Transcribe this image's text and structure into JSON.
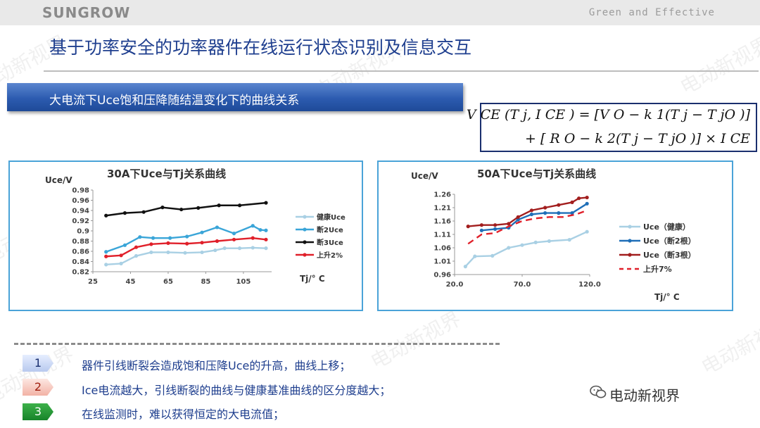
{
  "header": {
    "logo": "SUNGROW",
    "tagline": "Green and Effective"
  },
  "title": "基于功率安全的功率器件在线运行状态识别及信息交互",
  "subtitle": "大电流下Uce饱和压降随结温变化下的曲线关系",
  "formula": {
    "line1": "V CE (T j, I CE ) = [V O − k 1(T j − T jO )]",
    "line2": "+ [ R O − k 2(T j − T jO )] × I CE"
  },
  "watermark": "电动新视界",
  "colors": {
    "title_blue": "#1f3f8f",
    "subtitle_bar": "#2c5bb0",
    "chart_border": "#4aa3d8",
    "healthy": "#a9d0e4",
    "broken2": "#3aa5d8",
    "broken3": "#111111",
    "rise": "#e0202a",
    "c2_healthy": "#a9d0e4",
    "c2_broken2": "#1f6fb8",
    "c2_broken3": "#a21e1e",
    "c2_rise": "#e0202a"
  },
  "chart_data": [
    {
      "type": "line",
      "title": "30A下Uce与Tj关系曲线",
      "ylabel": "Uce/V",
      "xlabel": "Tj/° C",
      "xlim": [
        25,
        120
      ],
      "ylim": [
        0.82,
        0.98
      ],
      "x_ticks": [
        "25",
        "45",
        "65",
        "85",
        "105"
      ],
      "x_tick_values": [
        25,
        45,
        65,
        85,
        105
      ],
      "y_ticks": [
        "0.82",
        "0.84",
        "0.86",
        "0.88",
        "0.9",
        "0.92",
        "0.94",
        "0.96",
        "0.98"
      ],
      "y_tick_values": [
        0.82,
        0.84,
        0.86,
        0.88,
        0.9,
        0.92,
        0.94,
        0.96,
        0.98
      ],
      "legend_position": "right",
      "series": [
        {
          "name": "健康Uce",
          "color": "#a9d0e4",
          "x": [
            32,
            40,
            48,
            56,
            65,
            74,
            83,
            90,
            95,
            103,
            110,
            117
          ],
          "y": [
            0.834,
            0.836,
            0.851,
            0.858,
            0.858,
            0.857,
            0.858,
            0.862,
            0.866,
            0.866,
            0.867,
            0.866
          ]
        },
        {
          "name": "断2Uce",
          "color": "#3aa5d8",
          "x": [
            32,
            42,
            50,
            57,
            66,
            75,
            83,
            91,
            100,
            110,
            114,
            117
          ],
          "y": [
            0.859,
            0.872,
            0.888,
            0.886,
            0.886,
            0.889,
            0.897,
            0.907,
            0.895,
            0.91,
            0.902,
            0.901
          ]
        },
        {
          "name": "断3Uce",
          "color": "#111111",
          "x": [
            32,
            42,
            52,
            62,
            72,
            81,
            92,
            103,
            117
          ],
          "y": [
            0.93,
            0.935,
            0.937,
            0.946,
            0.942,
            0.945,
            0.95,
            0.95,
            0.955
          ]
        },
        {
          "name": "上升2%",
          "color": "#e0202a",
          "x": [
            32,
            40,
            48,
            56,
            65,
            75,
            83,
            91,
            100,
            110,
            117
          ],
          "y": [
            0.85,
            0.852,
            0.868,
            0.874,
            0.876,
            0.875,
            0.877,
            0.88,
            0.883,
            0.886,
            0.883
          ]
        }
      ]
    },
    {
      "type": "line",
      "title": "50A下Uce与Tj关系曲线",
      "ylabel": "Uce/V",
      "xlabel": "Tj/° C",
      "xlim": [
        20,
        120
      ],
      "ylim": [
        0.96,
        1.26
      ],
      "x_ticks": [
        "20.0",
        "70.0",
        "120.0"
      ],
      "x_tick_values": [
        20,
        70,
        120
      ],
      "y_ticks": [
        "0.96",
        "1.01",
        "1.06",
        "1.11",
        "1.16",
        "1.21",
        "1.26"
      ],
      "y_tick_values": [
        0.96,
        1.01,
        1.06,
        1.11,
        1.16,
        1.21,
        1.26
      ],
      "legend_position": "right",
      "series": [
        {
          "name": "Uce（健康）",
          "color": "#a9d0e4",
          "dashed": false,
          "x": [
            28,
            35,
            48,
            60,
            70,
            80,
            90,
            105,
            118
          ],
          "y": [
            0.99,
            1.028,
            1.03,
            1.06,
            1.07,
            1.08,
            1.085,
            1.09,
            1.12
          ]
        },
        {
          "name": "Uce（断2根）",
          "color": "#1f6fb8",
          "dashed": false,
          "x": [
            40,
            50,
            60,
            67,
            77,
            87,
            97,
            107,
            118
          ],
          "y": [
            1.125,
            1.13,
            1.135,
            1.165,
            1.185,
            1.19,
            1.19,
            1.19,
            1.225
          ]
        },
        {
          "name": "Uce（断3根）",
          "color": "#a21e1e",
          "dashed": false,
          "x": [
            30,
            40,
            50,
            60,
            67,
            77,
            87,
            97,
            107,
            112,
            118
          ],
          "y": [
            1.14,
            1.145,
            1.145,
            1.15,
            1.175,
            1.2,
            1.21,
            1.22,
            1.23,
            1.245,
            1.248
          ]
        },
        {
          "name": "上升7%",
          "color": "#e0202a",
          "dashed": true,
          "x": [
            30,
            40,
            50,
            60,
            70,
            80,
            90,
            100,
            110,
            118
          ],
          "y": [
            1.075,
            1.11,
            1.115,
            1.14,
            1.16,
            1.17,
            1.175,
            1.175,
            1.185,
            1.2
          ]
        }
      ]
    }
  ],
  "points": [
    {
      "num": "1",
      "text": "器件引线断裂会造成饱和压降Uce的升高，曲线上移；"
    },
    {
      "num": "2",
      "text": "Ice电流越大，引线断裂的曲线与健康基准曲线的区分度越大；"
    },
    {
      "num": "3",
      "text": "在线监测时，难以获得恒定的大电流值；"
    }
  ],
  "wechat": "电动新视界"
}
